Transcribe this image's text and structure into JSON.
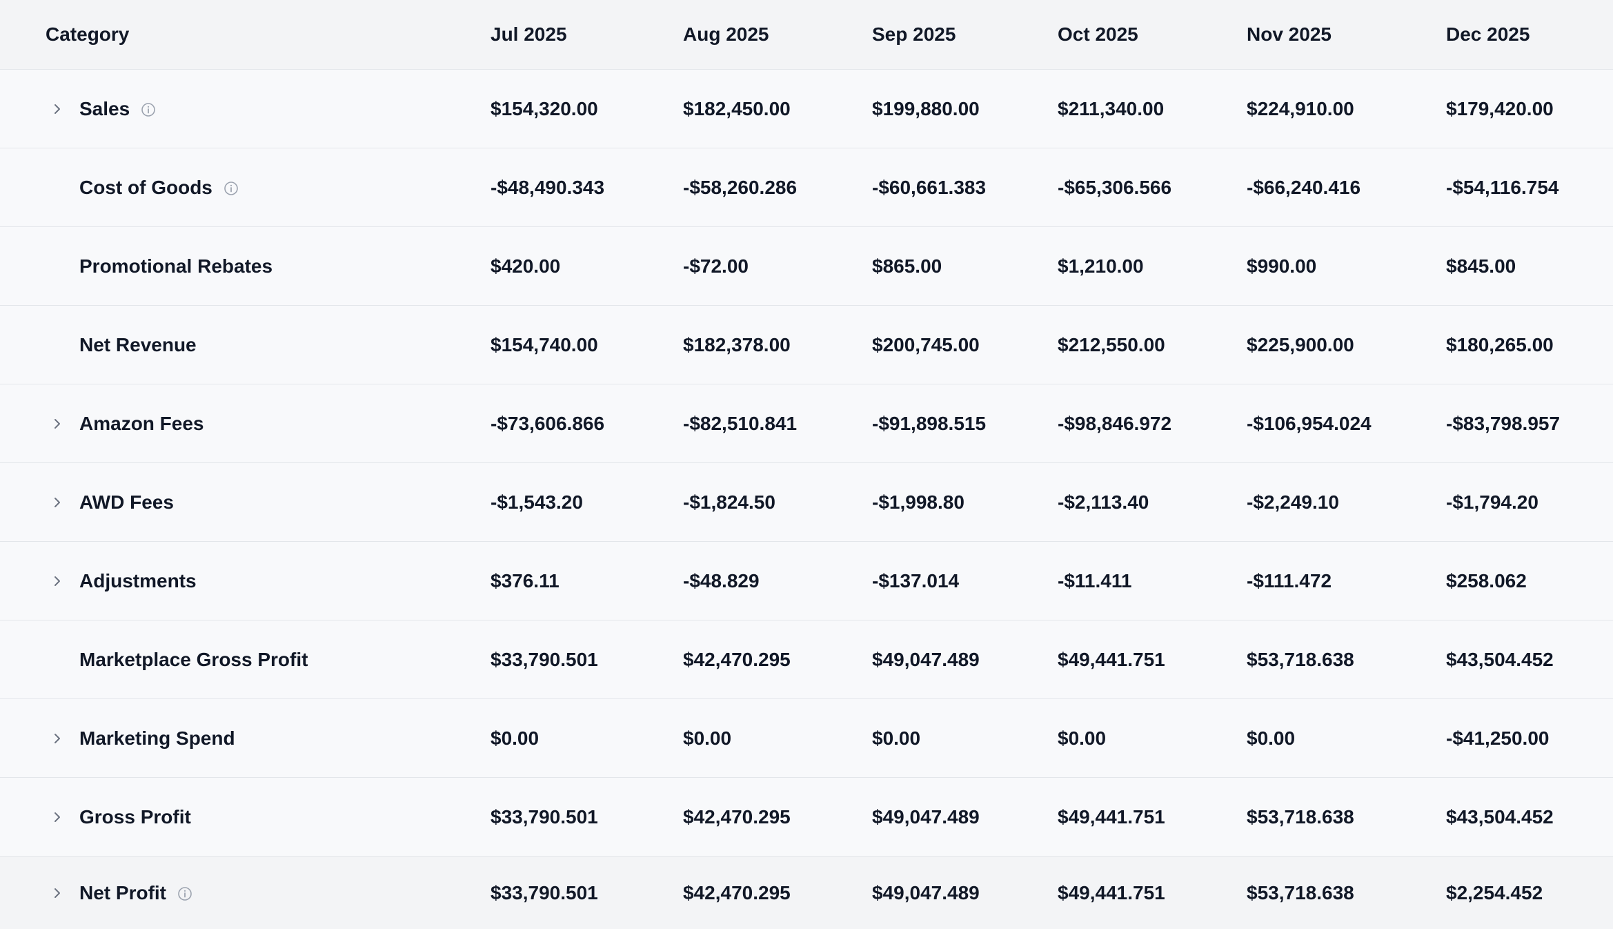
{
  "table": {
    "columns": [
      "Category",
      "Jul 2025",
      "Aug 2025",
      "Sep 2025",
      "Oct 2025",
      "Nov 2025",
      "Dec 2025"
    ],
    "rows": [
      {
        "label": "Sales",
        "expandable": true,
        "info": true,
        "cells": [
          "$154,320.00",
          "$182,450.00",
          "$199,880.00",
          "$211,340.00",
          "$224,910.00",
          "$179,420.00"
        ]
      },
      {
        "label": "Cost of Goods",
        "expandable": false,
        "info": true,
        "cells": [
          "-$48,490.343",
          "-$58,260.286",
          "-$60,661.383",
          "-$65,306.566",
          "-$66,240.416",
          "-$54,116.754"
        ]
      },
      {
        "label": "Promotional Rebates",
        "expandable": false,
        "info": false,
        "cells": [
          "$420.00",
          "-$72.00",
          "$865.00",
          "$1,210.00",
          "$990.00",
          "$845.00"
        ]
      },
      {
        "label": "Net Revenue",
        "expandable": false,
        "info": false,
        "cells": [
          "$154,740.00",
          "$182,378.00",
          "$200,745.00",
          "$212,550.00",
          "$225,900.00",
          "$180,265.00"
        ]
      },
      {
        "label": "Amazon Fees",
        "expandable": true,
        "info": false,
        "cells": [
          "-$73,606.866",
          "-$82,510.841",
          "-$91,898.515",
          "-$98,846.972",
          "-$106,954.024",
          "-$83,798.957"
        ]
      },
      {
        "label": "AWD Fees",
        "expandable": true,
        "info": false,
        "cells": [
          "-$1,543.20",
          "-$1,824.50",
          "-$1,998.80",
          "-$2,113.40",
          "-$2,249.10",
          "-$1,794.20"
        ]
      },
      {
        "label": "Adjustments",
        "expandable": true,
        "info": false,
        "cells": [
          "$376.11",
          "-$48.829",
          "-$137.014",
          "-$11.411",
          "-$111.472",
          "$258.062"
        ]
      },
      {
        "label": "Marketplace Gross Profit",
        "expandable": false,
        "info": false,
        "cells": [
          "$33,790.501",
          "$42,470.295",
          "$49,047.489",
          "$49,441.751",
          "$53,718.638",
          "$43,504.452"
        ]
      },
      {
        "label": "Marketing Spend",
        "expandable": true,
        "info": false,
        "cells": [
          "$0.00",
          "$0.00",
          "$0.00",
          "$0.00",
          "$0.00",
          "-$41,250.00"
        ]
      },
      {
        "label": "Gross Profit",
        "expandable": true,
        "info": false,
        "cells": [
          "$33,790.501",
          "$42,470.295",
          "$49,047.489",
          "$49,441.751",
          "$53,718.638",
          "$43,504.452"
        ]
      },
      {
        "label": "Net Profit",
        "expandable": true,
        "info": true,
        "cells": [
          "$33,790.501",
          "$42,470.295",
          "$49,047.489",
          "$49,441.751",
          "$53,718.638",
          "$2,254.452"
        ]
      }
    ]
  }
}
